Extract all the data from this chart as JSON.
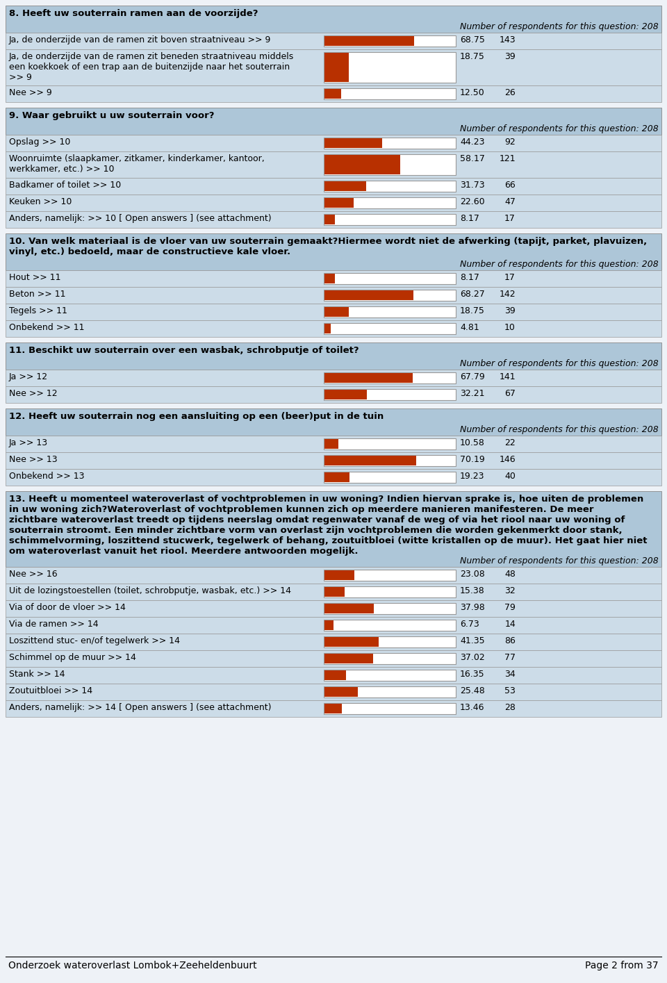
{
  "page_footer": "Onderzoek wateroverlast Lombok+Zeeheldenbuurt",
  "page_number": "Page 2 from 37",
  "bg_color": "#eef2f7",
  "section_header_bg": "#adc6d8",
  "row_bg": "#ccdce8",
  "bar_color": "#b83000",
  "bar_border": "#999999",
  "respondents_text": "Number of respondents for this question: 208",
  "sections": [
    {
      "number": "8",
      "title": "Heeft uw souterrain ramen aan de voorzijde?",
      "title_lines": 1,
      "rows": [
        {
          "label": "Ja, de onderzijde van de ramen zit boven straatniveau >> 9",
          "label_lines": 1,
          "pct": 68.75,
          "n": 143
        },
        {
          "label": "Ja, de onderzijde van de ramen zit beneden straatniveau middels\neen koekkoek of een trap aan de buitenzijde naar het souterrain\n>> 9",
          "label_lines": 3,
          "pct": 18.75,
          "n": 39
        },
        {
          "label": "Nee >> 9",
          "label_lines": 1,
          "pct": 12.5,
          "n": 26
        }
      ]
    },
    {
      "number": "9",
      "title": "Waar gebruikt u uw souterrain voor?",
      "title_lines": 1,
      "rows": [
        {
          "label": "Opslag >> 10",
          "label_lines": 1,
          "pct": 44.23,
          "n": 92
        },
        {
          "label": "Woonruimte (slaapkamer, zitkamer, kinderkamer, kantoor,\nwerkkamer, etc.) >> 10",
          "label_lines": 2,
          "pct": 58.17,
          "n": 121
        },
        {
          "label": "Badkamer of toilet >> 10",
          "label_lines": 1,
          "pct": 31.73,
          "n": 66
        },
        {
          "label": "Keuken >> 10",
          "label_lines": 1,
          "pct": 22.6,
          "n": 47
        },
        {
          "label": "Anders, namelijk: >> 10 [ Open answers ] (see attachment)",
          "label_lines": 1,
          "pct": 8.17,
          "n": 17
        }
      ]
    },
    {
      "number": "10",
      "title": "Van welk materiaal is de vloer van uw souterrain gemaakt?Hiermee wordt niet de afwerking (tapijt, parket, plavuizen,\nvinyl, etc.) bedoeld, maar de constructieve kale vloer.",
      "title_lines": 2,
      "rows": [
        {
          "label": "Hout >> 11",
          "label_lines": 1,
          "pct": 8.17,
          "n": 17
        },
        {
          "label": "Beton >> 11",
          "label_lines": 1,
          "pct": 68.27,
          "n": 142
        },
        {
          "label": "Tegels >> 11",
          "label_lines": 1,
          "pct": 18.75,
          "n": 39
        },
        {
          "label": "Onbekend >> 11",
          "label_lines": 1,
          "pct": 4.81,
          "n": 10
        }
      ]
    },
    {
      "number": "11",
      "title": "Beschikt uw souterrain over een wasbak, schrobputje of toilet?",
      "title_lines": 1,
      "rows": [
        {
          "label": "Ja >> 12",
          "label_lines": 1,
          "pct": 67.79,
          "n": 141
        },
        {
          "label": "Nee >> 12",
          "label_lines": 1,
          "pct": 32.21,
          "n": 67
        }
      ]
    },
    {
      "number": "12",
      "title": "Heeft uw souterrain nog een aansluiting op een (beer)put in de tuin",
      "title_lines": 1,
      "rows": [
        {
          "label": "Ja >> 13",
          "label_lines": 1,
          "pct": 10.58,
          "n": 22
        },
        {
          "label": "Nee >> 13",
          "label_lines": 1,
          "pct": 70.19,
          "n": 146
        },
        {
          "label": "Onbekend >> 13",
          "label_lines": 1,
          "pct": 19.23,
          "n": 40
        }
      ]
    },
    {
      "number": "13",
      "title": "Heeft u momenteel wateroverlast of vochtproblemen in uw woning? Indien hiervan sprake is, hoe uiten de problemen\nin uw woning zich?Wateroverlast of vochtproblemen kunnen zich op meerdere manieren manifesteren. De meer\nzichtbare wateroverlast treedt op tijdens neerslag omdat regenwater vanaf de weg of via het riool naar uw woning of\nsouterrain stroomt. Een minder zichtbare vorm van overlast zijn vochtproblemen die worden gekenmerkt door stank,\nschimmelvorming, loszittend stucwerk, tegelwerk of behang, zoutuitbloei (witte kristallen op de muur). Het gaat hier niet\nom wateroverlast vanuit het riool. Meerdere antwoorden mogelijk.",
      "title_lines": 6,
      "rows": [
        {
          "label": "Nee >> 16",
          "label_lines": 1,
          "pct": 23.08,
          "n": 48
        },
        {
          "label": "Uit de lozingstoestellen (toilet, schrobputje, wasbak, etc.) >> 14",
          "label_lines": 1,
          "pct": 15.38,
          "n": 32
        },
        {
          "label": "Via of door de vloer >> 14",
          "label_lines": 1,
          "pct": 37.98,
          "n": 79
        },
        {
          "label": "Via de ramen >> 14",
          "label_lines": 1,
          "pct": 6.73,
          "n": 14
        },
        {
          "label": "Loszittend stuc- en/of tegelwerk >> 14",
          "label_lines": 1,
          "pct": 41.35,
          "n": 86
        },
        {
          "label": "Schimmel op de muur >> 14",
          "label_lines": 1,
          "pct": 37.02,
          "n": 77
        },
        {
          "label": "Stank >> 14",
          "label_lines": 1,
          "pct": 16.35,
          "n": 34
        },
        {
          "label": "Zoutuitbloei >> 14",
          "label_lines": 1,
          "pct": 25.48,
          "n": 53
        },
        {
          "label": "Anders, namelijk: >> 14 [ Open answers ] (see attachment)",
          "label_lines": 1,
          "pct": 13.46,
          "n": 28
        }
      ]
    }
  ]
}
